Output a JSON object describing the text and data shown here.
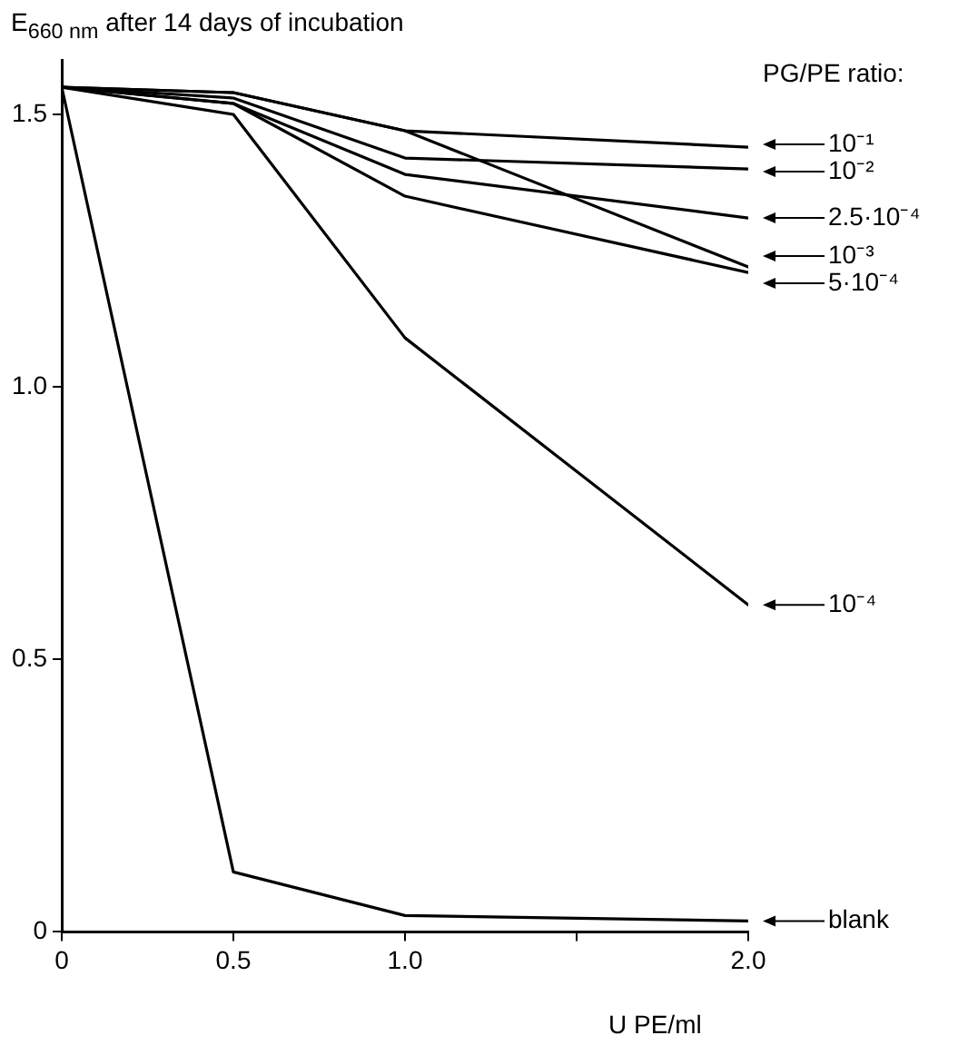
{
  "chart_data": {
    "type": "line",
    "ylabel": "E$_{660 nm}$ after 14 days of incubation",
    "xlabel": "U PE/ml",
    "legend_title": "PG/PE ratio:",
    "x": [
      0,
      0.5,
      1,
      2
    ],
    "xlim": [
      0,
      2
    ],
    "xticks": [
      0,
      {
        "value": 0.5,
        "label": "0.5"
      },
      {
        "value": 1,
        "label": "1.0"
      },
      {
        "value": 1.5,
        "label": null
      },
      {
        "value": 2,
        "label": "2.0"
      }
    ],
    "ylim": [
      0,
      1.6
    ],
    "yticks": [
      0,
      {
        "value": 0.5,
        "label": "0.5"
      },
      {
        "value": 1,
        "label": "1.0"
      },
      1.5
    ],
    "grid": false,
    "legend": "right",
    "marker": "none",
    "line_style": "solid",
    "series": [
      {
        "name": "10⁻¹",
        "color": "#000000",
        "values": [
          1.55,
          1.54,
          1.47,
          1.44
        ]
      },
      {
        "name": "10⁻²",
        "color": "#000000",
        "values": [
          1.55,
          1.53,
          1.42,
          1.4
        ]
      },
      {
        "name": "2.5·10⁻⁴",
        "color": "#000000",
        "values": [
          1.55,
          1.52,
          1.39,
          1.31
        ]
      },
      {
        "name": "10⁻³",
        "color": "#000000",
        "values": [
          1.55,
          1.54,
          1.47,
          1.22
        ]
      },
      {
        "name": "5·10⁻⁴",
        "color": "#000000",
        "values": [
          1.55,
          1.52,
          1.35,
          1.21
        ]
      },
      {
        "name": "10⁻⁴",
        "color": "#000000",
        "values": [
          1.55,
          1.5,
          1.09,
          0.6
        ]
      },
      {
        "name": "blank",
        "color": "#000000",
        "values": [
          1.55,
          0.11,
          0.03,
          0.02
        ]
      }
    ]
  }
}
